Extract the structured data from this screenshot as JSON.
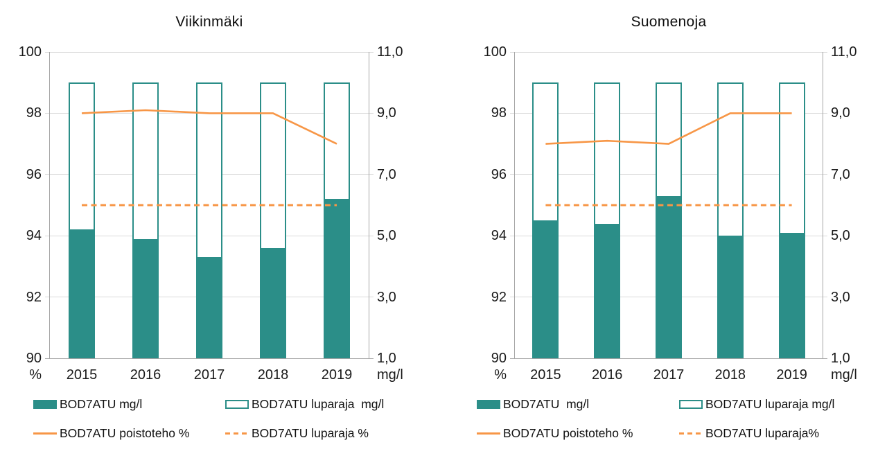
{
  "colors": {
    "teal": "#2B8E88",
    "orange": "#F79646",
    "gridline": "#D9D9D9",
    "axis_line": "#A6A6A6",
    "text": "#1A1A1A"
  },
  "chart_data": [
    {
      "type": "combo-bar-line",
      "title": "Viikinmäki",
      "categories": [
        "2015",
        "2016",
        "2017",
        "2018",
        "2019"
      ],
      "left_axis": {
        "unit": "%",
        "min": 90,
        "max": 100,
        "step": 2,
        "ticks": [
          "100",
          "98",
          "96",
          "94",
          "92",
          "90"
        ]
      },
      "right_axis": {
        "unit": "mg/l",
        "min": 1,
        "max": 11,
        "step": 2,
        "ticks": [
          "11,0",
          "9,0",
          "7,0",
          "5,0",
          "3,0",
          "1,0"
        ]
      },
      "grid": true,
      "legend_position": "bottom",
      "series": [
        {
          "name": "BOD7ATU mg/l",
          "kind": "bar-filled",
          "axis": "right",
          "values": [
            5.2,
            4.9,
            4.3,
            4.6,
            6.2
          ]
        },
        {
          "name": "BOD7ATU luparaja  mg/l",
          "kind": "bar-outline",
          "axis": "right",
          "values": [
            10,
            10,
            10,
            10,
            10
          ]
        },
        {
          "name": "BOD7ATU poistoteho %",
          "kind": "line-solid",
          "axis": "left",
          "values": [
            98.0,
            98.1,
            98.0,
            98.0,
            97.0
          ]
        },
        {
          "name": "BOD7ATU luparaja %",
          "kind": "line-dashed",
          "axis": "left",
          "values": [
            95,
            95,
            95,
            95,
            95
          ]
        }
      ]
    },
    {
      "type": "combo-bar-line",
      "title": "Suomenoja",
      "categories": [
        "2015",
        "2016",
        "2017",
        "2018",
        "2019"
      ],
      "left_axis": {
        "unit": "%",
        "min": 90,
        "max": 100,
        "step": 2,
        "ticks": [
          "100",
          "98",
          "96",
          "94",
          "92",
          "90"
        ]
      },
      "right_axis": {
        "unit": "mg/l",
        "min": 1,
        "max": 11,
        "step": 2,
        "ticks": [
          "11,0",
          "9,0",
          "7,0",
          "5,0",
          "3,0",
          "1,0"
        ]
      },
      "grid": true,
      "legend_position": "bottom",
      "series": [
        {
          "name": "BOD7ATU  mg/l",
          "kind": "bar-filled",
          "axis": "right",
          "values": [
            5.5,
            5.4,
            6.3,
            5.0,
            5.1
          ]
        },
        {
          "name": "BOD7ATU luparaja mg/l",
          "kind": "bar-outline",
          "axis": "right",
          "values": [
            10,
            10,
            10,
            10,
            10
          ]
        },
        {
          "name": "BOD7ATU poistoteho %",
          "kind": "line-solid",
          "axis": "left",
          "values": [
            97.0,
            97.1,
            97.0,
            98.0,
            98.0
          ]
        },
        {
          "name": "BOD7ATU luparaja%",
          "kind": "line-dashed",
          "axis": "left",
          "values": [
            95,
            95,
            95,
            95,
            95
          ]
        }
      ]
    }
  ]
}
